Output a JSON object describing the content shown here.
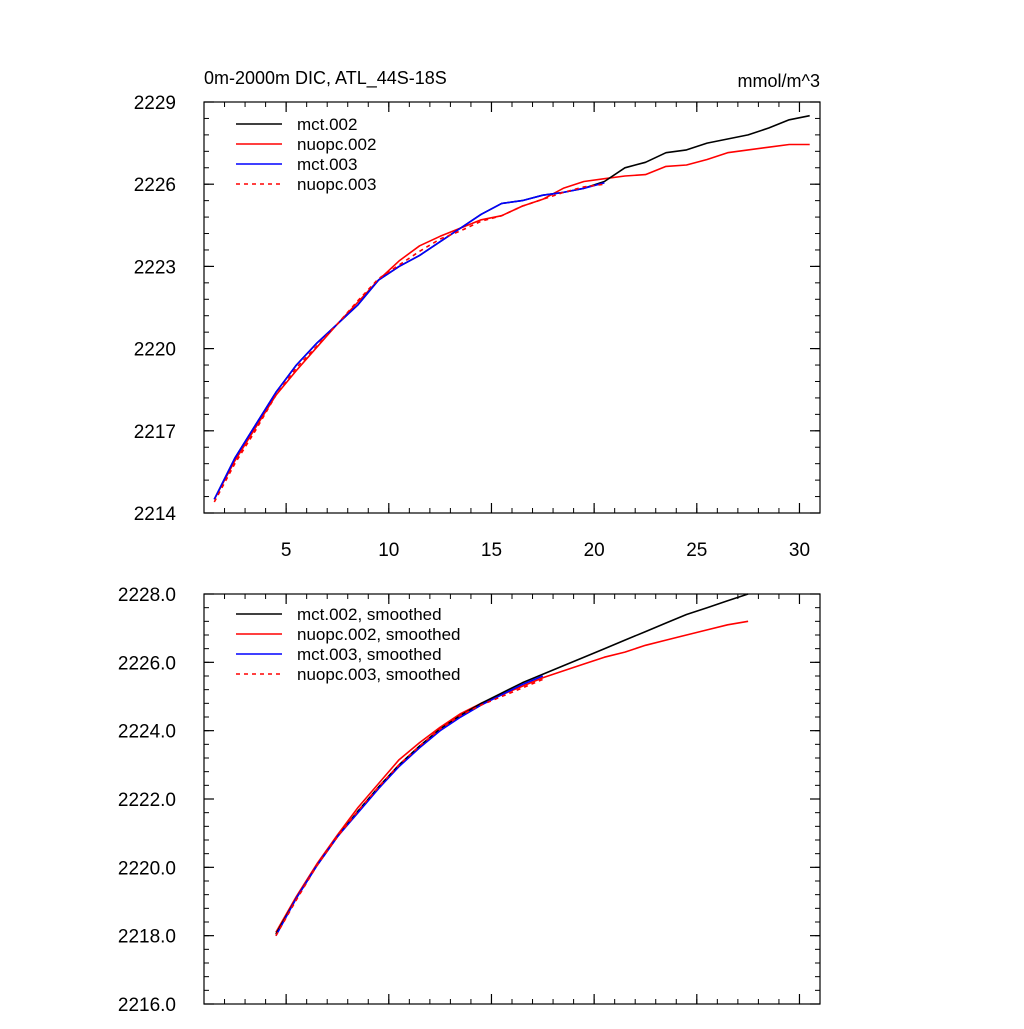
{
  "chart_data": [
    {
      "type": "line",
      "title": "0m-2000m DIC, ATL_44S-18S",
      "units": "mmol/m^3",
      "xlim": [
        1,
        31
      ],
      "ylim": [
        2214,
        2229
      ],
      "xticks": [
        5,
        10,
        15,
        20,
        25,
        30
      ],
      "yticks": [
        2214,
        2217,
        2220,
        2223,
        2226,
        2229
      ],
      "ytick_decimals": 0,
      "x_tick_labels": true,
      "series": [
        {
          "name": "mct.002",
          "color": "#000000",
          "dash": false,
          "x": [
            1.5,
            2.5,
            3.5,
            4.5,
            5.5,
            6.5,
            7.5,
            8.5,
            9.5,
            10.5,
            11.5,
            12.5,
            13.5,
            14.5,
            15.5,
            16.5,
            17.5,
            18.5,
            19.5,
            20.5,
            21.5,
            22.5,
            23.5,
            24.5,
            25.5,
            26.5,
            27.5,
            28.5,
            29.5,
            30.5
          ],
          "y": [
            2214.5,
            2216.0,
            2217.2,
            2218.4,
            2219.4,
            2220.2,
            2220.9,
            2221.6,
            2222.5,
            2223.0,
            2223.4,
            2223.9,
            2224.4,
            2224.9,
            2225.3,
            2225.4,
            2225.6,
            2225.7,
            2225.85,
            2226.1,
            2226.6,
            2226.8,
            2227.15,
            2227.25,
            2227.5,
            2227.65,
            2227.8,
            2228.05,
            2228.35,
            2228.5
          ]
        },
        {
          "name": "nuopc.002",
          "color": "#ff0000",
          "dash": false,
          "x": [
            1.5,
            2.5,
            3.5,
            4.5,
            5.5,
            6.5,
            7.5,
            8.5,
            9.5,
            10.5,
            11.5,
            12.5,
            13.5,
            14.5,
            15.5,
            16.5,
            17.5,
            18.5,
            19.5,
            20.5,
            21.5,
            22.5,
            23.5,
            24.5,
            25.5,
            26.5,
            27.5,
            28.5,
            29.5,
            30.5
          ],
          "y": [
            2214.5,
            2215.9,
            2217.1,
            2218.3,
            2219.2,
            2220.05,
            2220.9,
            2221.7,
            2222.5,
            2223.2,
            2223.75,
            2224.1,
            2224.4,
            2224.7,
            2224.85,
            2225.2,
            2225.45,
            2225.85,
            2226.1,
            2226.2,
            2226.3,
            2226.35,
            2226.65,
            2226.7,
            2226.9,
            2227.15,
            2227.25,
            2227.35,
            2227.45,
            2227.45
          ]
        },
        {
          "name": "mct.003",
          "color": "#0000ff",
          "dash": false,
          "x": [
            1.5,
            2.5,
            3.5,
            4.5,
            5.5,
            6.5,
            7.5,
            8.5,
            9.5,
            10.5,
            11.5,
            12.5,
            13.5,
            14.5,
            15.5,
            16.5,
            17.5,
            18.5,
            19.5,
            20.5
          ],
          "y": [
            2214.5,
            2216.0,
            2217.2,
            2218.4,
            2219.4,
            2220.2,
            2220.9,
            2221.6,
            2222.5,
            2223.0,
            2223.4,
            2223.9,
            2224.4,
            2224.9,
            2225.3,
            2225.4,
            2225.6,
            2225.7,
            2225.85,
            2226.05
          ]
        },
        {
          "name": "nuopc.003",
          "color": "#ff0000",
          "dash": true,
          "x": [
            1.5,
            2.5,
            3.5,
            4.5,
            5.5,
            6.5,
            7.5,
            8.5,
            9.5,
            10.5,
            11.5,
            12.5,
            13.5,
            14.5,
            15.5,
            16.5,
            17.5,
            18.5,
            19.5,
            20.5
          ],
          "y": [
            2214.4,
            2215.8,
            2217.0,
            2218.3,
            2219.3,
            2220.1,
            2220.9,
            2221.75,
            2222.55,
            2223.05,
            2223.55,
            2224.0,
            2224.3,
            2224.65,
            2224.85,
            2225.2,
            2225.45,
            2225.7,
            2225.9,
            2226.0
          ]
        }
      ]
    },
    {
      "type": "line",
      "title": "",
      "units": "",
      "xlim": [
        1,
        31
      ],
      "ylim": [
        2216.0,
        2228.0
      ],
      "xticks": [
        5,
        10,
        15,
        20,
        25,
        30
      ],
      "yticks": [
        2216.0,
        2218.0,
        2220.0,
        2222.0,
        2224.0,
        2226.0,
        2228.0
      ],
      "ytick_decimals": 1,
      "x_tick_labels": false,
      "series": [
        {
          "name": "mct.002, smoothed",
          "color": "#000000",
          "dash": false,
          "x": [
            4.5,
            5.5,
            6.5,
            7.5,
            8.5,
            9.5,
            10.5,
            11.5,
            12.5,
            13.5,
            14.5,
            15.5,
            16.5,
            17.5,
            18.5,
            19.5,
            20.5,
            21.5,
            22.5,
            23.5,
            24.5,
            25.5,
            26.5,
            27.5
          ],
          "y": [
            2218.05,
            2219.1,
            2220.05,
            2220.9,
            2221.65,
            2222.35,
            2223.0,
            2223.55,
            2224.05,
            2224.45,
            2224.8,
            2225.1,
            2225.4,
            2225.65,
            2225.9,
            2226.15,
            2226.4,
            2226.65,
            2226.9,
            2227.15,
            2227.4,
            2227.6,
            2227.8,
            2228.0
          ]
        },
        {
          "name": "nuopc.002, smoothed",
          "color": "#ff0000",
          "dash": false,
          "x": [
            4.5,
            5.5,
            6.5,
            7.5,
            8.5,
            9.5,
            10.5,
            11.5,
            12.5,
            13.5,
            14.5,
            15.5,
            16.5,
            17.5,
            18.5,
            19.5,
            20.5,
            21.5,
            22.5,
            23.5,
            24.5,
            25.5,
            26.5,
            27.5
          ],
          "y": [
            2218.1,
            2219.15,
            2220.1,
            2220.95,
            2221.75,
            2222.45,
            2223.15,
            2223.65,
            2224.1,
            2224.5,
            2224.8,
            2225.05,
            2225.3,
            2225.55,
            2225.75,
            2225.95,
            2226.15,
            2226.3,
            2226.5,
            2226.65,
            2226.8,
            2226.95,
            2227.1,
            2227.2
          ]
        },
        {
          "name": "mct.003, smoothed",
          "color": "#0000ff",
          "dash": false,
          "x": [
            4.5,
            5.5,
            6.5,
            7.5,
            8.5,
            9.5,
            10.5,
            11.5,
            12.5,
            13.5,
            14.5,
            15.5,
            16.5,
            17.5
          ],
          "y": [
            2218.0,
            2219.1,
            2220.05,
            2220.9,
            2221.6,
            2222.3,
            2222.95,
            2223.5,
            2224.0,
            2224.4,
            2224.75,
            2225.05,
            2225.35,
            2225.6
          ]
        },
        {
          "name": "nuopc.003, smoothed",
          "color": "#ff0000",
          "dash": true,
          "x": [
            4.5,
            5.5,
            6.5,
            7.5,
            8.5,
            9.5,
            10.5,
            11.5,
            12.5,
            13.5,
            14.5,
            15.5,
            16.5,
            17.5
          ],
          "y": [
            2218.0,
            2219.05,
            2220.05,
            2220.9,
            2221.65,
            2222.35,
            2223.0,
            2223.55,
            2224.05,
            2224.45,
            2224.75,
            2225.0,
            2225.25,
            2225.5
          ]
        }
      ]
    }
  ]
}
